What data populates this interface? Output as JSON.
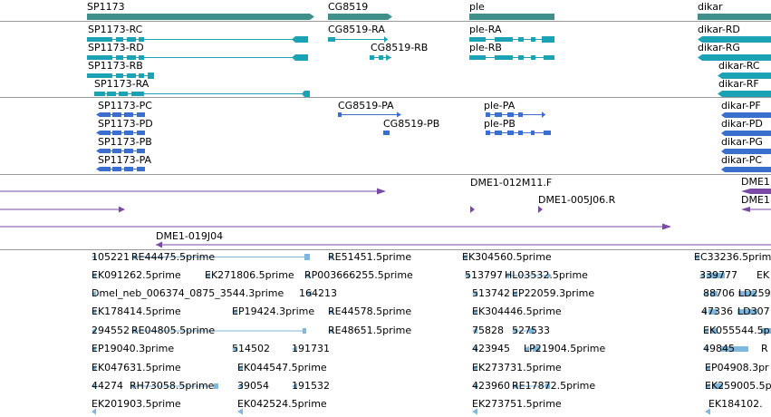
{
  "genes": [
    {
      "id": "gene-sp1173",
      "label": "SP1173"
    },
    {
      "id": "gene-cg8519",
      "label": "CG8519"
    },
    {
      "id": "gene-ple",
      "label": "ple"
    },
    {
      "id": "gene-dikar",
      "label": "dikar"
    }
  ],
  "transcripts": [
    {
      "id": "tx-sp1173-rc",
      "label": "SP1173-RC"
    },
    {
      "id": "tx-sp1173-rd",
      "label": "SP1173-RD"
    },
    {
      "id": "tx-sp1173-rb",
      "label": "SP1173-RB"
    },
    {
      "id": "tx-sp1173-ra",
      "label": "SP1173-RA"
    },
    {
      "id": "tx-cg8519-ra",
      "label": "CG8519-RA"
    },
    {
      "id": "tx-cg8519-rb",
      "label": "CG8519-RB"
    },
    {
      "id": "tx-ple-ra",
      "label": "ple-RA"
    },
    {
      "id": "tx-ple-rb",
      "label": "ple-RB"
    },
    {
      "id": "tx-dikar-rd",
      "label": "dikar-RD"
    },
    {
      "id": "tx-dikar-rg",
      "label": "dikar-RG"
    },
    {
      "id": "tx-dikar-rc",
      "label": "dikar-RC"
    },
    {
      "id": "tx-dikar-rf",
      "label": "dikar-RF"
    }
  ],
  "proteins": [
    {
      "id": "pr-sp1173-pc",
      "label": "SP1173-PC"
    },
    {
      "id": "pr-sp1173-pd",
      "label": "SP1173-PD"
    },
    {
      "id": "pr-sp1173-pb",
      "label": "SP1173-PB"
    },
    {
      "id": "pr-sp1173-pa",
      "label": "SP1173-PA"
    },
    {
      "id": "pr-cg8519-pa",
      "label": "CG8519-PA"
    },
    {
      "id": "pr-cg8519-pb",
      "label": "CG8519-PB"
    },
    {
      "id": "pr-ple-pa",
      "label": "ple-PA"
    },
    {
      "id": "pr-ple-pb",
      "label": "ple-PB"
    },
    {
      "id": "pr-dikar-pf",
      "label": "dikar-PF"
    },
    {
      "id": "pr-dikar-pd",
      "label": "dikar-PD"
    },
    {
      "id": "pr-dikar-pg",
      "label": "dikar-PG"
    },
    {
      "id": "pr-dikar-pc",
      "label": "dikar-PC"
    }
  ],
  "clones": [
    {
      "id": "clone-dme1-012m11f",
      "label": "DME1-012M11.F"
    },
    {
      "id": "clone-dme1-005j06r",
      "label": "DME1-005J06.R"
    },
    {
      "id": "clone-dme1-019j04",
      "label": "DME1-019J04"
    },
    {
      "id": "clone-dme1-a",
      "label": "DME1"
    },
    {
      "id": "clone-dme1-b",
      "label": "DME1"
    }
  ],
  "ests": [
    {
      "id": "est-105221",
      "label": "105221"
    },
    {
      "id": "est-re44475",
      "label": "RE44475.5prime"
    },
    {
      "id": "est-re51451",
      "label": "RE51451.5prime"
    },
    {
      "id": "est-ek304560",
      "label": "EK304560.5prime"
    },
    {
      "id": "est-ec33236",
      "label": "EC33236.5prime"
    },
    {
      "id": "est-ek091262",
      "label": "EK091262.5prime"
    },
    {
      "id": "est-ek271806",
      "label": "EK271806.5prime"
    },
    {
      "id": "est-rp003666255",
      "label": "RP003666255.5prime"
    },
    {
      "id": "est-513797",
      "label": "513797"
    },
    {
      "id": "est-hl03532",
      "label": "HL03532.5prime"
    },
    {
      "id": "est-339777",
      "label": "339777"
    },
    {
      "id": "est-ek-cut1",
      "label": "EK"
    },
    {
      "id": "est-dmel-neb",
      "label": "Dmel_neb_006374_0875_3544.3prime"
    },
    {
      "id": "est-164213",
      "label": "164213"
    },
    {
      "id": "est-513742",
      "label": "513742"
    },
    {
      "id": "est-ep22059",
      "label": "EP22059.3prime"
    },
    {
      "id": "est-88706",
      "label": "88706"
    },
    {
      "id": "est-ld259",
      "label": "LD259"
    },
    {
      "id": "est-ek178414",
      "label": "EK178414.5prime"
    },
    {
      "id": "est-ep19424",
      "label": "EP19424.3prime"
    },
    {
      "id": "est-re44578",
      "label": "RE44578.5prime"
    },
    {
      "id": "est-ek304446",
      "label": "EK304446.5prime"
    },
    {
      "id": "est-47336",
      "label": "47336"
    },
    {
      "id": "est-ld307",
      "label": "LD307"
    },
    {
      "id": "est-294552",
      "label": "294552"
    },
    {
      "id": "est-re04805",
      "label": "RE04805.5prime"
    },
    {
      "id": "est-re48651",
      "label": "RE48651.5prime"
    },
    {
      "id": "est-75828",
      "label": "75828"
    },
    {
      "id": "est-527533",
      "label": "527533"
    },
    {
      "id": "est-ek055544",
      "label": "EK055544.5p"
    },
    {
      "id": "est-ep19040",
      "label": "EP19040.3prime"
    },
    {
      "id": "est-514502",
      "label": "514502"
    },
    {
      "id": "est-191731",
      "label": "191731"
    },
    {
      "id": "est-423945",
      "label": "423945"
    },
    {
      "id": "est-lp21904",
      "label": "LP21904.5prime"
    },
    {
      "id": "est-49845",
      "label": "49845"
    },
    {
      "id": "est-r-cut",
      "label": "R"
    },
    {
      "id": "est-ek047631",
      "label": "EK047631.5prime"
    },
    {
      "id": "est-ek044547",
      "label": "EK044547.5prime"
    },
    {
      "id": "est-ek273731",
      "label": "EK273731.5prime"
    },
    {
      "id": "est-ep04908",
      "label": "EP04908.3pr"
    },
    {
      "id": "est-44274",
      "label": "44274"
    },
    {
      "id": "est-rh73058",
      "label": "RH73058.5prime"
    },
    {
      "id": "est-39054",
      "label": "39054"
    },
    {
      "id": "est-191532",
      "label": "191532"
    },
    {
      "id": "est-423960",
      "label": "423960"
    },
    {
      "id": "est-re17872",
      "label": "RE17872.5prime"
    },
    {
      "id": "est-ek259005",
      "label": "EK259005.5p"
    },
    {
      "id": "est-ek201903",
      "label": "EK201903.5prime"
    },
    {
      "id": "est-ek042524",
      "label": "EK042524.5prime"
    },
    {
      "id": "est-ek273751",
      "label": "EK273751.5prime"
    },
    {
      "id": "est-ek184102",
      "label": "EK184102."
    }
  ],
  "colors": {
    "gene": "#3f8f8a",
    "transcript": "#1ba3b5",
    "protein": "#3a6fd0",
    "clone": "#7a4aa6",
    "est": "#7fb8dc",
    "separator": "#9a9a9a"
  }
}
